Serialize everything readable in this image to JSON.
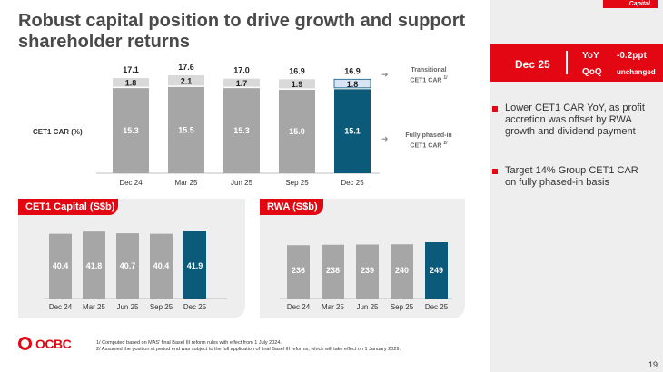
{
  "title": "Robust capital position to drive growth and support shareholder returns",
  "corner_tag": "Capital",
  "summary": {
    "period": "Dec 25",
    "yoy_label": "YoY",
    "yoy_value": "-0.2ppt",
    "qoq_label": "QoQ",
    "qoq_value": "unchanged"
  },
  "bullets": [
    "Lower CET1 CAR YoY, as profit accretion was offset by RWA growth and dividend payment",
    "Target 14% Group CET1 CAR on fully phased-in basis"
  ],
  "cet1_label": "CET1 CAR (%)",
  "legend": {
    "transitional": "Transitional",
    "transitional_sub": "CET1 CAR",
    "transitional_sup": "1/",
    "fully": "Fully phased-in",
    "fully_sub": "CET1 CAR",
    "fully_sup": "2/"
  },
  "chart_data": [
    {
      "type": "bar",
      "title": "CET1 CAR (%)",
      "stacked": true,
      "categories": [
        "Dec 24",
        "Mar 25",
        "Jun 25",
        "Sep 25",
        "Dec 25"
      ],
      "series": [
        {
          "name": "Fully phased-in CET1 CAR",
          "values": [
            15.3,
            15.5,
            15.3,
            15.0,
            15.1
          ]
        },
        {
          "name": "Transitional CET1 CAR add-on",
          "values": [
            1.8,
            2.1,
            1.7,
            1.9,
            1.8
          ]
        }
      ],
      "totals": [
        17.1,
        17.6,
        17.0,
        16.9,
        16.9
      ],
      "ylim": [
        0,
        17.6
      ]
    },
    {
      "type": "bar",
      "title": "CET1 Capital (S$b)",
      "categories": [
        "Dec 24",
        "Mar 25",
        "Jun 25",
        "Sep 25",
        "Dec 25"
      ],
      "values": [
        40.4,
        41.8,
        40.7,
        40.4,
        41.9
      ],
      "ylim": [
        0,
        41.9
      ]
    },
    {
      "type": "bar",
      "title": "RWA (S$b)",
      "categories": [
        "Dec 24",
        "Mar 25",
        "Jun 25",
        "Sep 25",
        "Dec 25"
      ],
      "values": [
        236,
        238,
        239,
        240,
        249
      ],
      "ylim": [
        0,
        249
      ]
    }
  ],
  "colors": {
    "red": "#e30613",
    "highlight": "#0b5a7a",
    "grey_bar": "#a6a6a6",
    "light_bar": "#d9d9d9",
    "light_blue": "#d6e4f5"
  },
  "footnotes": [
    "1/  Computed based on MAS' final Basel III reform rules with effect from 1 July 2024.",
    "2/  Assumed the position at period end was subject to the full application of final Basel III reforms, which will take effect on 1 January 2029."
  ],
  "logo_text": "OCBC",
  "page_number": "19"
}
